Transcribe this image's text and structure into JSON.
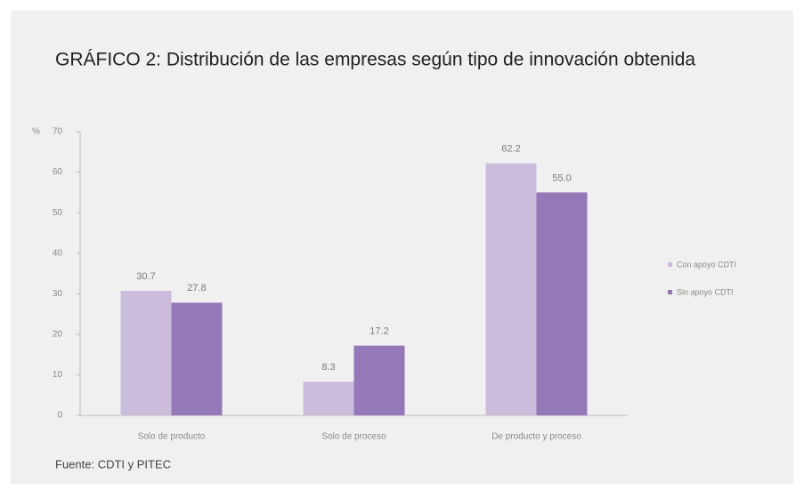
{
  "chart_data": {
    "type": "bar",
    "title": "GRÁFICO 2: Distribución de las empresas según tipo de innovación obtenida",
    "ylabel": "%",
    "categories": [
      "Solo de producto",
      "Solo de proceso",
      "De producto y proceso"
    ],
    "series": [
      {
        "name": "Con apoyo CDTI",
        "color": "#cbbcdb",
        "values": [
          30.7,
          8.3,
          62.2
        ],
        "value_labels": [
          "30.7",
          "8.3",
          "62.2"
        ]
      },
      {
        "name": "Sin apoyo CDTI",
        "color": "#9478b8",
        "values": [
          27.8,
          17.2,
          55.0
        ],
        "value_labels": [
          "27.8",
          "17.2",
          "55.0"
        ]
      }
    ],
    "ylim": [
      0,
      70
    ],
    "yticks": [
      0,
      10,
      20,
      30,
      40,
      50,
      60,
      70
    ],
    "legend": "right",
    "source": "Fuente: CDTI y PITEC"
  }
}
